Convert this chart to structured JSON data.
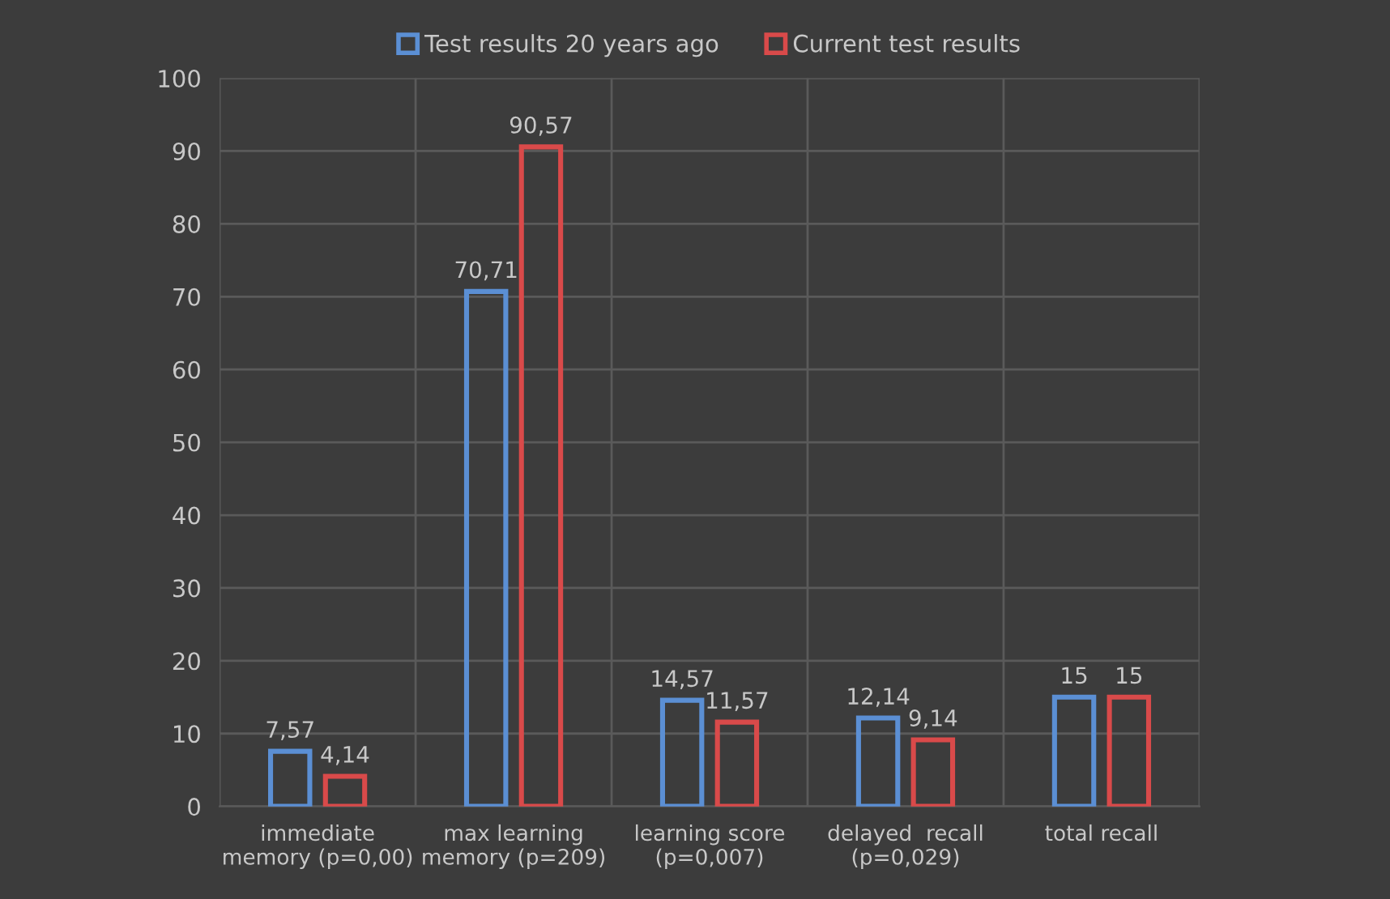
{
  "chart_data": {
    "type": "bar",
    "categories": [
      "immediate\nmemory (p=0,00)",
      "max learning\nmemory (p=209)",
      "learning score\n(p=0,007)",
      "delayed  recall\n(p=0,029)",
      "total recall"
    ],
    "series": [
      {
        "name": "Test results 20 years ago",
        "color": "#5b8fd4",
        "values": [
          7.57,
          70.71,
          14.57,
          12.14,
          15
        ],
        "value_labels": [
          "7,57",
          "70,71",
          "14,57",
          "12,14",
          "15"
        ]
      },
      {
        "name": "Current test results",
        "color": "#d94a4a",
        "values": [
          4.14,
          90.57,
          11.57,
          9.14,
          15
        ],
        "value_labels": [
          "4,14",
          "90,57",
          "11,57",
          "9,14",
          "15"
        ]
      }
    ],
    "ylim": [
      0,
      100
    ],
    "yticks": [
      0,
      10,
      20,
      30,
      40,
      50,
      60,
      70,
      80,
      90,
      100
    ],
    "grid": true,
    "legend": "top"
  }
}
